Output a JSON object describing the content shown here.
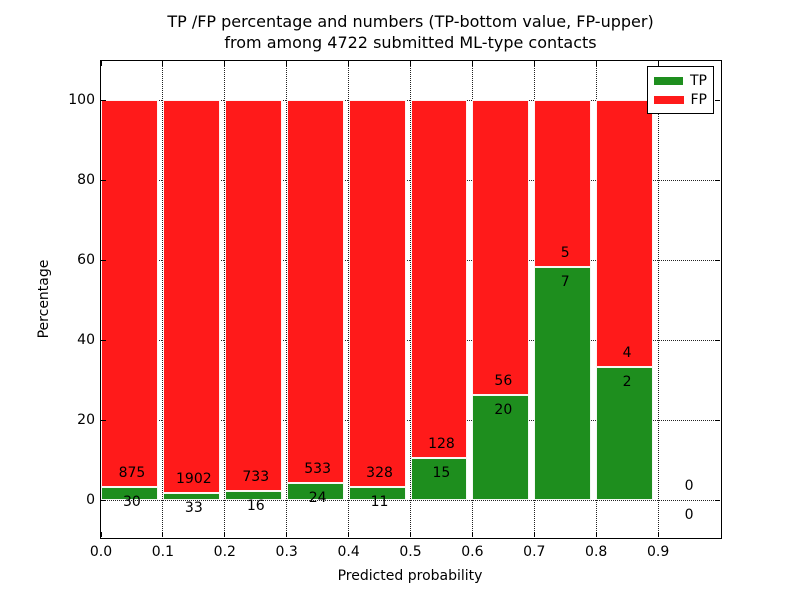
{
  "chart_data": {
    "type": "bar",
    "stacked": true,
    "normalized_to_percent": true,
    "title_lines": [
      "TP /FP percentage and numbers (TP-bottom value, FP-upper)",
      "from among 4722 submitted ML-type contacts"
    ],
    "total_contacts": 4722,
    "xlabel": "Predicted probability",
    "ylabel": "Percentage",
    "x_bin_edges": [
      0.0,
      0.1,
      0.2,
      0.3,
      0.4,
      0.5,
      0.6,
      0.7,
      0.8,
      0.9,
      1.0
    ],
    "xtick_values": [
      0.0,
      0.1,
      0.2,
      0.3,
      0.4,
      0.5,
      0.6,
      0.7,
      0.8,
      0.9
    ],
    "xtick_labels": [
      "0.0",
      "0.1",
      "0.2",
      "0.3",
      "0.4",
      "0.5",
      "0.6",
      "0.7",
      "0.8",
      "0.9"
    ],
    "ytick_values": [
      0,
      20,
      40,
      60,
      80,
      100
    ],
    "ytick_labels": [
      "0",
      "20",
      "40",
      "60",
      "80",
      "100"
    ],
    "xlim": [
      0.0,
      1.0
    ],
    "ylim": [
      -9.25,
      109.75
    ],
    "grid": true,
    "bar_rel_width": 0.92,
    "colors": {
      "tp": "#1e8e1e",
      "fp": "#ff1a1a",
      "grid": "#222222",
      "text": "#000000"
    },
    "legend": {
      "position": "upper right",
      "entries": [
        {
          "label": "TP",
          "color_key": "tp"
        },
        {
          "label": "FP",
          "color_key": "fp"
        }
      ]
    },
    "series": [
      {
        "name": "TP",
        "counts": [
          30,
          33,
          16,
          24,
          11,
          15,
          20,
          7,
          2,
          0
        ]
      },
      {
        "name": "FP",
        "counts": [
          875,
          1902,
          733,
          533,
          328,
          128,
          56,
          5,
          4,
          0
        ]
      }
    ]
  }
}
